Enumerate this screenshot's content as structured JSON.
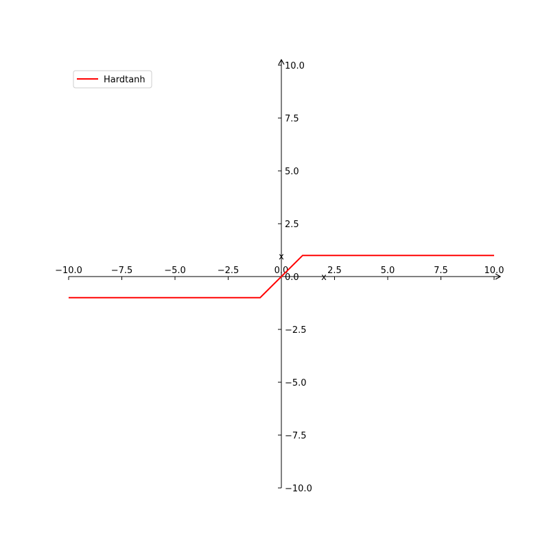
{
  "chart_data": {
    "type": "line",
    "title": "",
    "xlabel": "x",
    "ylabel": "x",
    "xlim": [
      -10,
      10
    ],
    "ylim": [
      -10,
      10
    ],
    "grid": false,
    "legend_placement": "top-left",
    "x_ticks": [
      -10,
      -7.5,
      -5,
      -2.5,
      0,
      2.5,
      5,
      7.5,
      10
    ],
    "x_tick_labels": [
      "−10.0",
      "−7.5",
      "−5.0",
      "−2.5",
      "0.0",
      "2.5",
      "5.0",
      "7.5",
      "10.0"
    ],
    "y_ticks": [
      -10,
      -7.5,
      -5,
      -2.5,
      0,
      2.5,
      5,
      7.5,
      10
    ],
    "y_tick_labels": [
      "−10.0",
      "−7.5",
      "−5.0",
      "−2.5",
      "0.0",
      "2.5",
      "5.0",
      "7.5",
      "10.0"
    ],
    "series": [
      {
        "name": "Hardtanh",
        "color": "#ff0000",
        "x": [
          -10,
          -1,
          1,
          10
        ],
        "y": [
          -1,
          -1,
          1,
          1
        ]
      }
    ]
  }
}
